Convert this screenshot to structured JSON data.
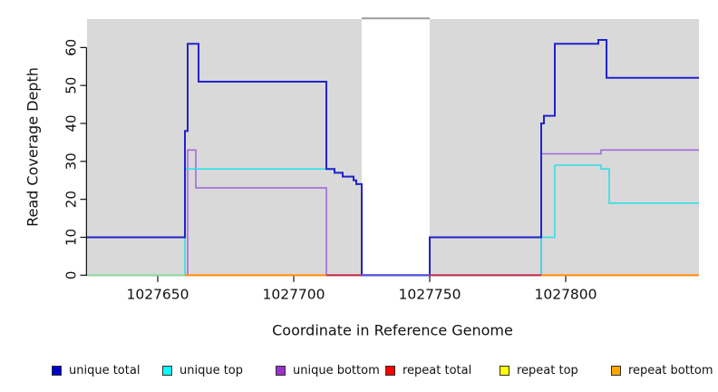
{
  "legend": {
    "position": "bottom",
    "items": [
      {
        "label": "unique total",
        "color": "#0000cc",
        "border": "#2f2f2f"
      },
      {
        "label": "unique top",
        "color": "#00ffff",
        "border": "#2f2f2f"
      },
      {
        "label": "unique bottom",
        "color": "#9933cc",
        "border": "#2f2f2f"
      },
      {
        "label": "repeat total",
        "color": "#ff0000",
        "border": "#2f2f2f"
      },
      {
        "label": "repeat top",
        "color": "#ffff00",
        "border": "#2f2f2f"
      },
      {
        "label": "repeat bottom",
        "color": "#ffa500",
        "border": "#2f2f2f"
      }
    ]
  },
  "chart_data": {
    "type": "line",
    "subtype": "step",
    "title": "",
    "xlabel": "Coordinate in Reference Genome",
    "ylabel": "Read Coverage Depth",
    "xlim": [
      1027624,
      1027849
    ],
    "ylim": [
      0,
      67.5
    ],
    "x_ticks": [
      1027650,
      1027700,
      1027750,
      1027800
    ],
    "y_ticks": [
      0,
      10,
      20,
      30,
      40,
      50,
      60
    ],
    "grid": false,
    "legend_position": "bottom",
    "plot_background": "#ffffff",
    "shaded_color": "#d9d9d9",
    "shaded_regions": [
      {
        "x0": 1027624,
        "x1": 1027725
      },
      {
        "x0": 1027750,
        "x1": 1027849
      }
    ],
    "gap_region": {
      "x0": 1027725,
      "x1": 1027750,
      "top_marker_color": "#9a9a9a"
    },
    "draw_order": [
      4,
      3,
      2,
      1,
      0,
      5
    ],
    "series": [
      {
        "name": "unique total",
        "color": "#2222cc",
        "segments": [
          {
            "steps": [
              [
                1027624,
                10
              ],
              [
                1027660,
                38
              ],
              [
                1027661,
                61
              ],
              [
                1027665,
                51
              ],
              [
                1027712,
                28
              ],
              [
                1027715,
                27
              ],
              [
                1027718,
                26
              ],
              [
                1027722,
                25
              ],
              [
                1027723,
                24
              ],
              [
                1027725,
                0
              ],
              [
                1027750,
                10
              ],
              [
                1027791,
                40
              ],
              [
                1027792,
                42
              ],
              [
                1027796,
                61
              ],
              [
                1027812,
                62
              ],
              [
                1027815,
                52
              ]
            ],
            "x_end": 1027849
          }
        ]
      },
      {
        "name": "unique top",
        "color": "#30dfe8",
        "segments": [
          {
            "steps": [
              [
                1027624,
                0
              ],
              [
                1027660,
                28
              ],
              [
                1027715,
                27
              ],
              [
                1027718,
                26
              ],
              [
                1027722,
                25
              ],
              [
                1027723,
                24
              ],
              [
                1027725,
                0
              ],
              [
                1027791,
                10
              ],
              [
                1027796,
                29
              ],
              [
                1027813,
                28
              ],
              [
                1027816,
                19
              ]
            ],
            "x_end": 1027849
          }
        ]
      },
      {
        "name": "unique bottom",
        "color": "#a26bdd",
        "segments": [
          {
            "steps": [
              [
                1027624,
                0
              ],
              [
                1027661,
                33
              ],
              [
                1027664,
                23
              ],
              [
                1027712,
                0
              ],
              [
                1027791,
                32
              ],
              [
                1027813,
                33
              ]
            ],
            "x_end": 1027849
          }
        ]
      },
      {
        "name": "repeat total",
        "color": "#c62a50",
        "segments": [
          {
            "steps": [
              [
                1027624,
                0
              ]
            ],
            "x_end": 1027849
          }
        ]
      },
      {
        "name": "repeat top",
        "color": "#e6e600",
        "segments": [
          {
            "steps": [
              [
                1027624,
                0
              ]
            ],
            "x_end": 1027849
          }
        ]
      },
      {
        "name": "repeat bottom",
        "color": "#ff9010",
        "segments": [
          {
            "steps": [
              [
                1027660,
                0
              ]
            ],
            "x_end": 1027712
          },
          {
            "steps": [
              [
                1027791,
                0
              ]
            ],
            "x_end": 1027849
          }
        ]
      }
    ],
    "baseline_overlay": [
      {
        "x0": 1027624,
        "x1": 1027660,
        "color": "#8fd9a0"
      },
      {
        "x0": 1027660,
        "x1": 1027712,
        "color": "#ff9010"
      },
      {
        "x0": 1027712,
        "x1": 1027725,
        "color": "#c62a50"
      },
      {
        "x0": 1027725,
        "x1": 1027750,
        "color": "#5b55e0"
      },
      {
        "x0": 1027750,
        "x1": 1027791,
        "color": "#c62a50"
      },
      {
        "x0": 1027791,
        "x1": 1027849,
        "color": "#ff9010"
      }
    ]
  }
}
